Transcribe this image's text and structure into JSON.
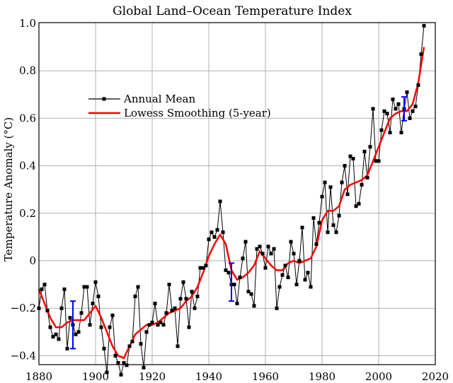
{
  "chart_data": {
    "type": "line",
    "title": "Global Land–Ocean Temperature Index",
    "xlabel": "",
    "ylabel": "Temperature Anomaly (°C)",
    "xlim": [
      1880,
      2020
    ],
    "ylim": [
      -0.45,
      1.0
    ],
    "xticks": [
      1880,
      1900,
      1920,
      1940,
      1960,
      1980,
      2000,
      2020
    ],
    "xtick_labels": [
      "1880",
      "1900",
      "1920",
      "1940",
      "1960",
      "1980",
      "2000",
      "2020"
    ],
    "yticks": [
      -0.4,
      -0.2,
      0.0,
      0.2,
      0.4,
      0.6,
      0.8,
      1.0
    ],
    "ytick_labels": [
      "−0.4",
      "−0.2",
      "0",
      "0.2",
      "0.4",
      "0.6",
      "0.8",
      "1.0"
    ],
    "grid": true,
    "legend_position": "upper-left",
    "series": [
      {
        "name": "Annual Mean",
        "color": "#000000",
        "marker": "square",
        "x": [
          1880,
          1881,
          1882,
          1883,
          1884,
          1885,
          1886,
          1887,
          1888,
          1889,
          1890,
          1891,
          1892,
          1893,
          1894,
          1895,
          1896,
          1897,
          1898,
          1899,
          1900,
          1901,
          1902,
          1903,
          1904,
          1905,
          1906,
          1907,
          1908,
          1909,
          1910,
          1911,
          1912,
          1913,
          1914,
          1915,
          1916,
          1917,
          1918,
          1919,
          1920,
          1921,
          1922,
          1923,
          1924,
          1925,
          1926,
          1927,
          1928,
          1929,
          1930,
          1931,
          1932,
          1933,
          1934,
          1935,
          1936,
          1937,
          1938,
          1939,
          1940,
          1941,
          1942,
          1943,
          1944,
          1945,
          1946,
          1947,
          1948,
          1949,
          1950,
          1951,
          1952,
          1953,
          1954,
          1955,
          1956,
          1957,
          1958,
          1959,
          1960,
          1961,
          1962,
          1963,
          1964,
          1965,
          1966,
          1967,
          1968,
          1969,
          1970,
          1971,
          1972,
          1973,
          1974,
          1975,
          1976,
          1977,
          1978,
          1979,
          1980,
          1981,
          1982,
          1983,
          1984,
          1985,
          1986,
          1987,
          1988,
          1989,
          1990,
          1991,
          1992,
          1993,
          1994,
          1995,
          1996,
          1997,
          1998,
          1999,
          2000,
          2001,
          2002,
          2003,
          2004,
          2005,
          2006,
          2007,
          2008,
          2009,
          2010,
          2011,
          2012,
          2013,
          2014,
          2015,
          2016
        ],
        "y": [
          -0.2,
          -0.12,
          -0.1,
          -0.21,
          -0.28,
          -0.32,
          -0.31,
          -0.33,
          -0.2,
          -0.12,
          -0.37,
          -0.24,
          -0.27,
          -0.31,
          -0.3,
          -0.22,
          -0.11,
          -0.11,
          -0.27,
          -0.18,
          -0.09,
          -0.15,
          -0.28,
          -0.37,
          -0.47,
          -0.28,
          -0.23,
          -0.4,
          -0.43,
          -0.48,
          -0.43,
          -0.44,
          -0.36,
          -0.34,
          -0.15,
          -0.11,
          -0.35,
          -0.45,
          -0.3,
          -0.27,
          -0.26,
          -0.18,
          -0.27,
          -0.26,
          -0.27,
          -0.22,
          -0.1,
          -0.21,
          -0.2,
          -0.36,
          -0.16,
          -0.09,
          -0.16,
          -0.28,
          -0.13,
          -0.2,
          -0.15,
          -0.03,
          -0.03,
          -0.02,
          0.09,
          0.12,
          0.1,
          0.13,
          0.25,
          0.12,
          -0.04,
          -0.05,
          -0.1,
          -0.1,
          -0.18,
          -0.07,
          0.01,
          0.08,
          -0.13,
          -0.14,
          -0.19,
          0.05,
          0.06,
          0.03,
          -0.03,
          0.06,
          0.03,
          0.05,
          -0.2,
          -0.11,
          -0.06,
          -0.02,
          -0.07,
          0.08,
          0.03,
          -0.1,
          0.0,
          0.14,
          -0.08,
          -0.05,
          -0.11,
          0.18,
          0.07,
          0.16,
          0.27,
          0.33,
          0.12,
          0.31,
          0.15,
          0.12,
          0.19,
          0.33,
          0.4,
          0.28,
          0.44,
          0.43,
          0.23,
          0.24,
          0.32,
          0.46,
          0.35,
          0.48,
          0.64,
          0.42,
          0.42,
          0.55,
          0.63,
          0.62,
          0.54,
          0.68,
          0.64,
          0.66,
          0.54,
          0.64,
          0.71,
          0.6,
          0.63,
          0.65,
          0.74,
          0.87,
          0.99
        ]
      },
      {
        "name": "Lowess Smoothing (5-year)",
        "color": "#ff0000",
        "x": [
          1880,
          1882,
          1884,
          1886,
          1888,
          1890,
          1892,
          1894,
          1896,
          1898,
          1900,
          1902,
          1904,
          1906,
          1908,
          1910,
          1912,
          1914,
          1916,
          1918,
          1920,
          1922,
          1924,
          1926,
          1928,
          1930,
          1932,
          1934,
          1936,
          1938,
          1940,
          1942,
          1944,
          1946,
          1948,
          1950,
          1952,
          1954,
          1956,
          1958,
          1960,
          1962,
          1964,
          1966,
          1968,
          1970,
          1972,
          1974,
          1976,
          1978,
          1980,
          1982,
          1984,
          1986,
          1988,
          1990,
          1992,
          1994,
          1996,
          1998,
          2000,
          2002,
          2004,
          2006,
          2008,
          2010,
          2012,
          2014,
          2016
        ],
        "y": [
          -0.12,
          -0.18,
          -0.24,
          -0.28,
          -0.28,
          -0.26,
          -0.25,
          -0.25,
          -0.25,
          -0.22,
          -0.19,
          -0.24,
          -0.3,
          -0.36,
          -0.4,
          -0.41,
          -0.36,
          -0.31,
          -0.29,
          -0.27,
          -0.27,
          -0.26,
          -0.24,
          -0.22,
          -0.21,
          -0.2,
          -0.17,
          -0.15,
          -0.11,
          -0.05,
          0.02,
          0.07,
          0.11,
          0.07,
          -0.04,
          -0.08,
          -0.07,
          -0.05,
          -0.02,
          0.04,
          0.01,
          -0.02,
          -0.04,
          -0.04,
          -0.01,
          0.0,
          -0.01,
          0.0,
          0.01,
          0.06,
          0.17,
          0.21,
          0.21,
          0.23,
          0.3,
          0.32,
          0.33,
          0.34,
          0.36,
          0.42,
          0.48,
          0.54,
          0.6,
          0.62,
          0.63,
          0.63,
          0.66,
          0.75,
          0.9
        ]
      }
    ],
    "uncertainty_bars": [
      {
        "x": 1892,
        "low": -0.37,
        "high": -0.17,
        "color": "#0000ff"
      },
      {
        "x": 1948,
        "low": -0.17,
        "high": -0.01,
        "color": "#0000ff"
      },
      {
        "x": 2009,
        "low": 0.59,
        "high": 0.69,
        "color": "#0000ff"
      }
    ]
  }
}
